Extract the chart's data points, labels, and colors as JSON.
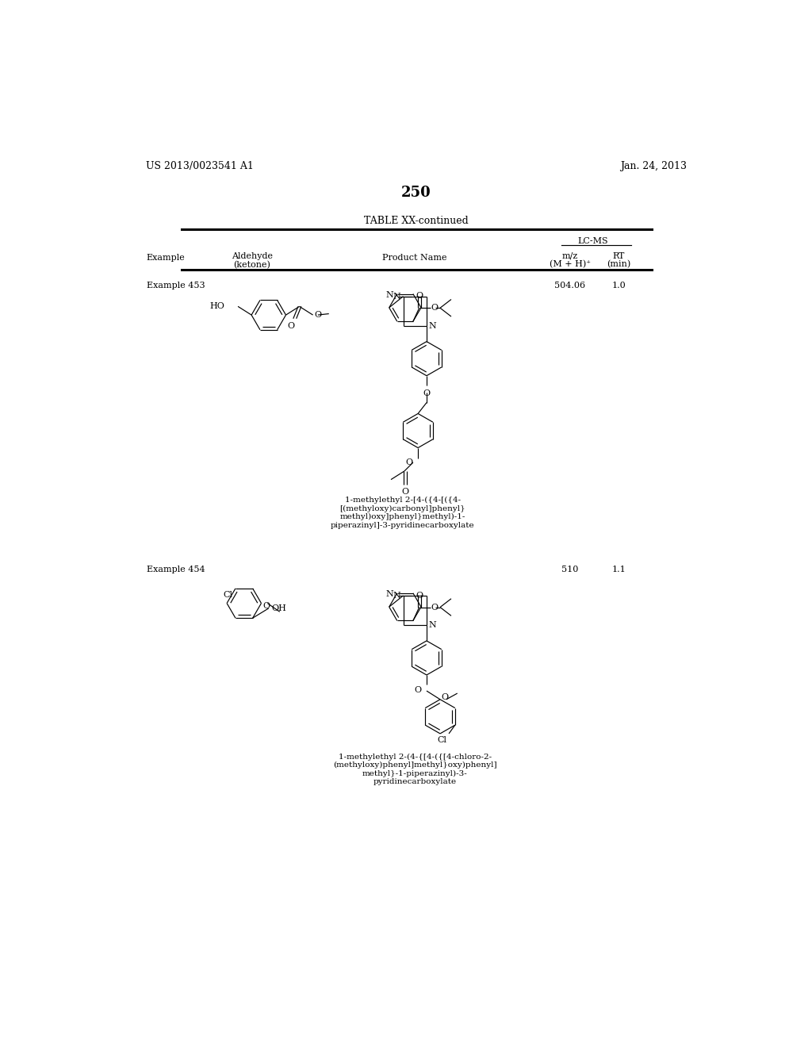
{
  "page_number": "250",
  "left_header": "US 2013/0023541 A1",
  "right_header": "Jan. 24, 2013",
  "table_title": "TABLE XX-continued",
  "examples": [
    {
      "id": "Example 453",
      "mz": "504.06",
      "rt": "1.0",
      "product_name_text": "1-methylethyl 2-[4-({4-[({4-\n[(methyloxy)carbonyl]phenyl}\nmethyl)oxy]phenyl}methyl)-1-\npiperazinyl]-3-pyridinecarboxylate"
    },
    {
      "id": "Example 454",
      "mz": "510",
      "rt": "1.1",
      "product_name_text": "1-methylethyl 2-(4-{[4-({[4-chloro-2-\n(methyloxy)phenyl]methyl}oxy)phenyl]\nmethyl}-1-piperazinyl)-3-\npyridinecarboxylate"
    }
  ]
}
